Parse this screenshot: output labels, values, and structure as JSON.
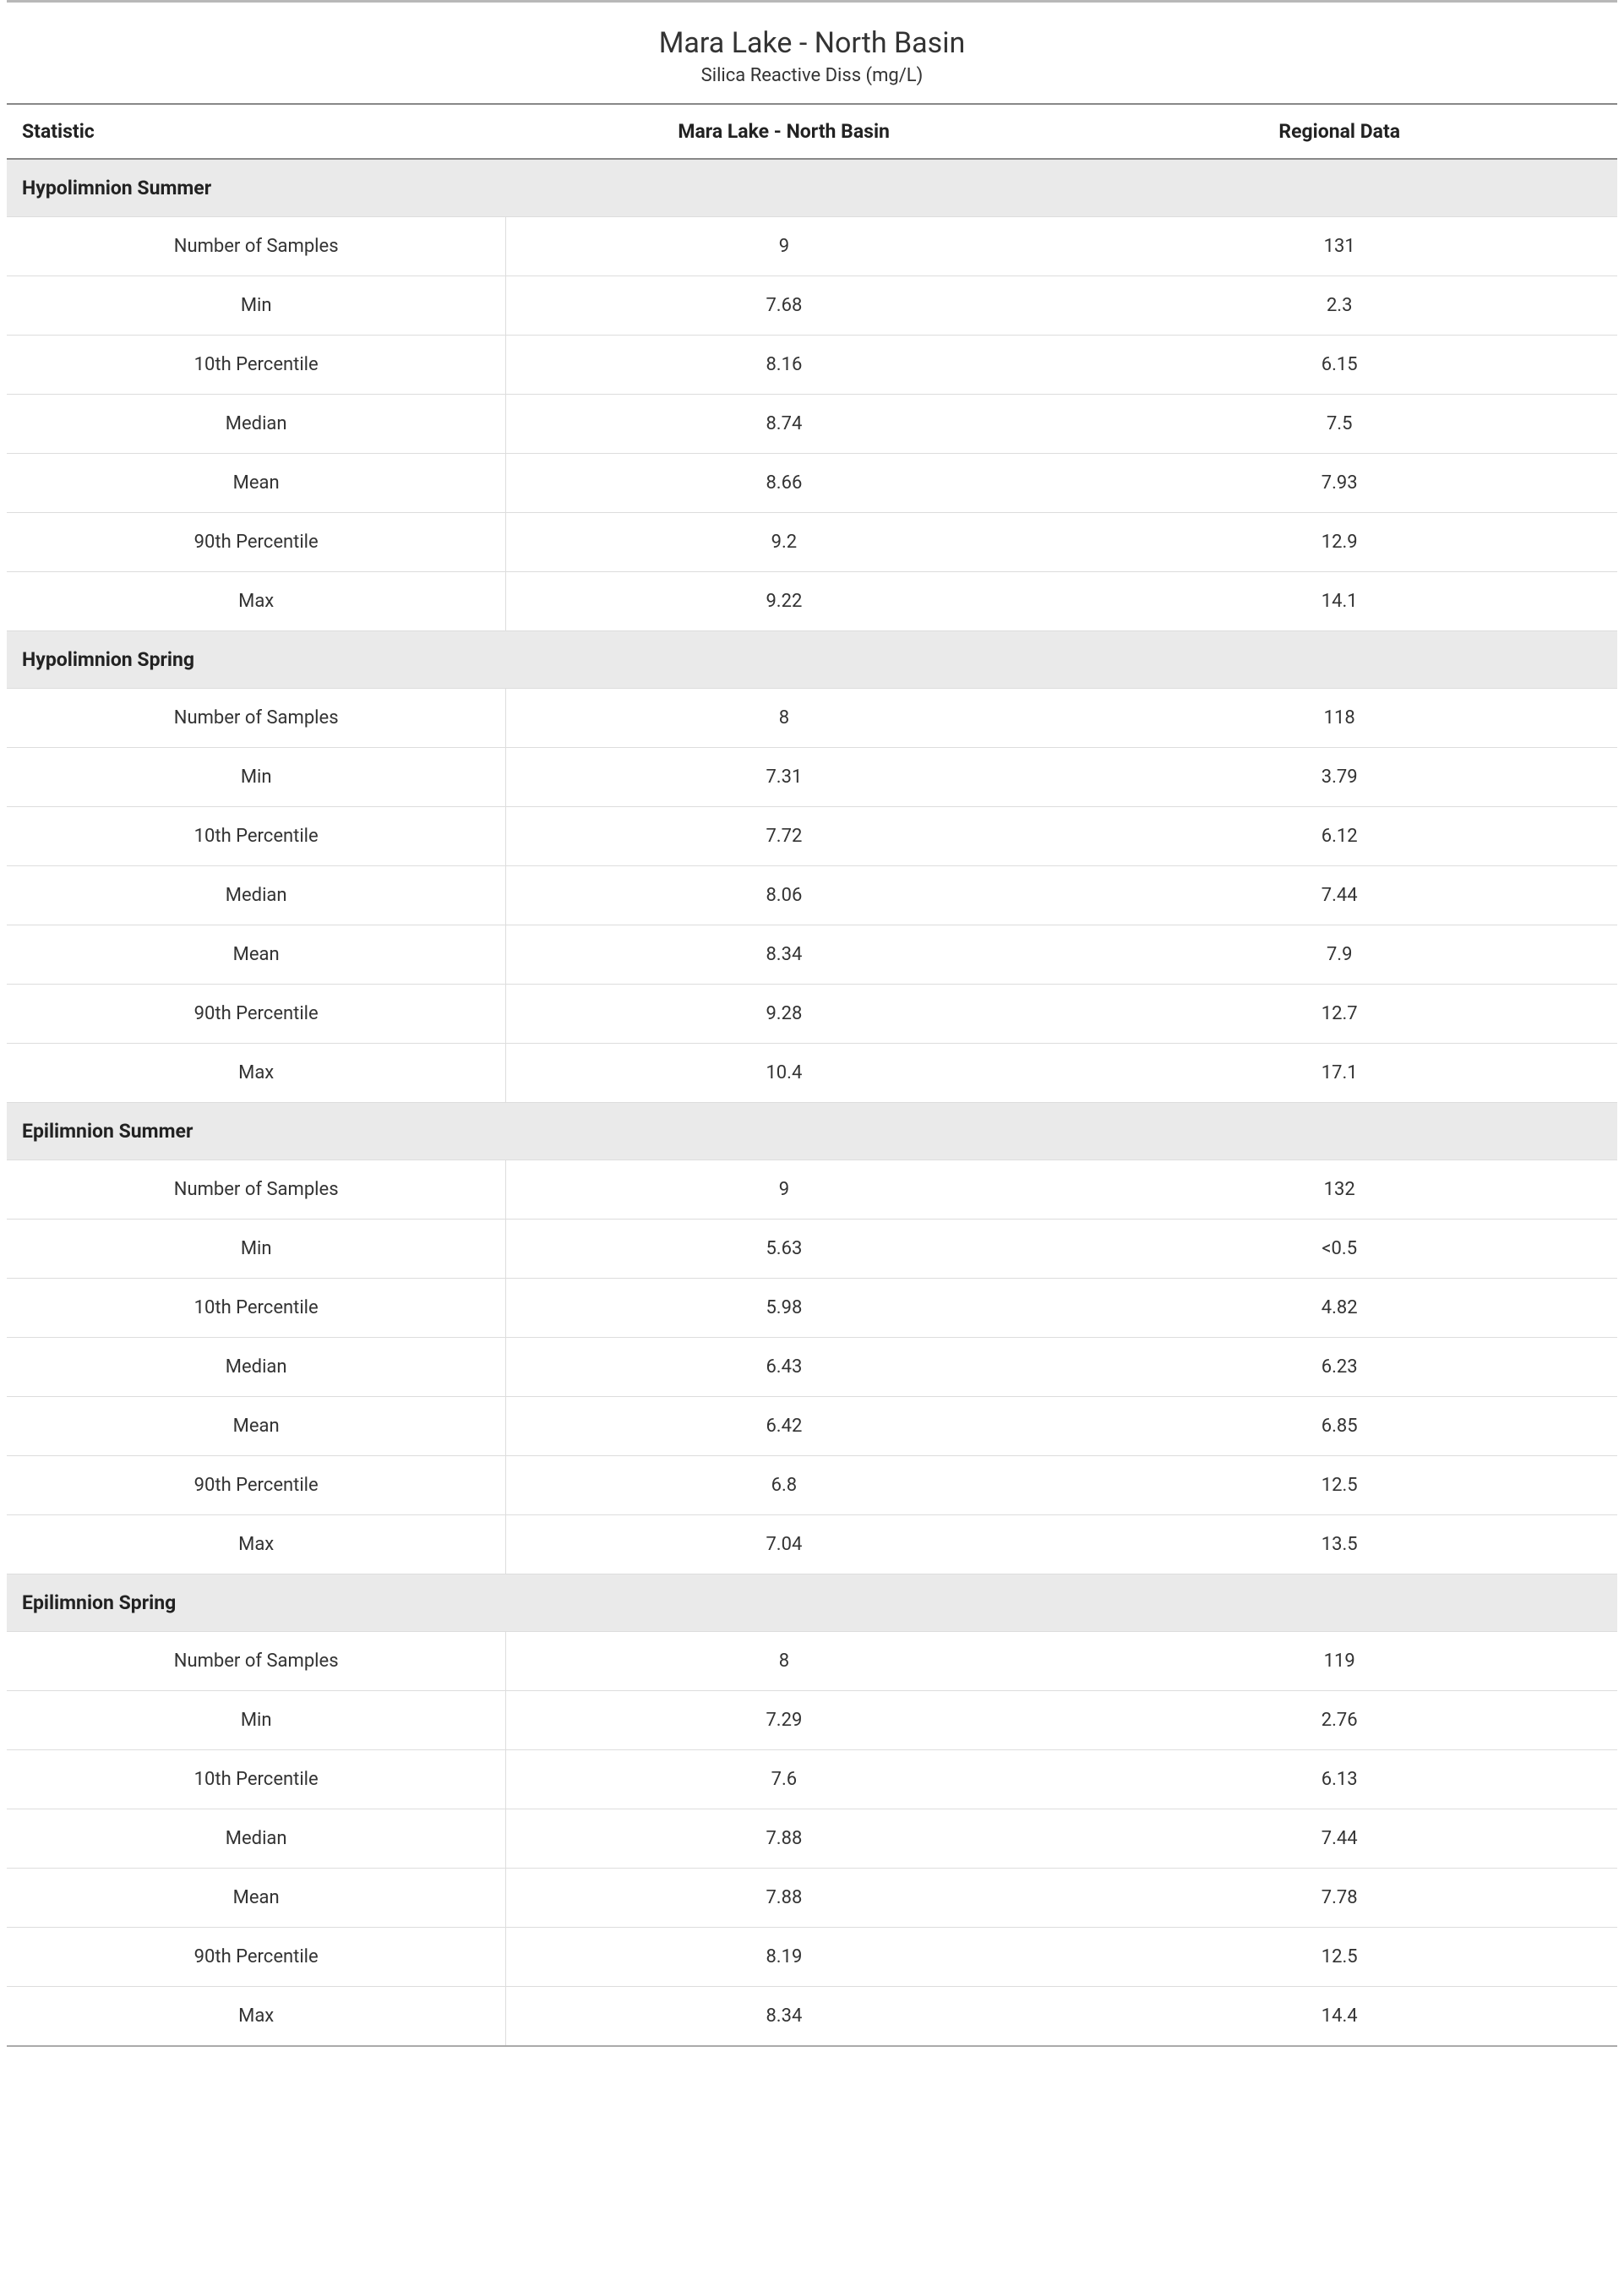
{
  "header": {
    "title": "Mara Lake - North Basin",
    "subtitle": "Silica Reactive Diss (mg/L)"
  },
  "table": {
    "columns": {
      "stat": "Statistic",
      "site": "Mara Lake - North Basin",
      "regional": "Regional Data"
    },
    "sections": [
      {
        "name": "Hypolimnion Summer",
        "rows": [
          {
            "label": "Number of Samples",
            "site": "9",
            "regional": "131"
          },
          {
            "label": "Min",
            "site": "7.68",
            "regional": "2.3"
          },
          {
            "label": "10th Percentile",
            "site": "8.16",
            "regional": "6.15"
          },
          {
            "label": "Median",
            "site": "8.74",
            "regional": "7.5"
          },
          {
            "label": "Mean",
            "site": "8.66",
            "regional": "7.93"
          },
          {
            "label": "90th Percentile",
            "site": "9.2",
            "regional": "12.9"
          },
          {
            "label": "Max",
            "site": "9.22",
            "regional": "14.1"
          }
        ]
      },
      {
        "name": "Hypolimnion Spring",
        "rows": [
          {
            "label": "Number of Samples",
            "site": "8",
            "regional": "118"
          },
          {
            "label": "Min",
            "site": "7.31",
            "regional": "3.79"
          },
          {
            "label": "10th Percentile",
            "site": "7.72",
            "regional": "6.12"
          },
          {
            "label": "Median",
            "site": "8.06",
            "regional": "7.44"
          },
          {
            "label": "Mean",
            "site": "8.34",
            "regional": "7.9"
          },
          {
            "label": "90th Percentile",
            "site": "9.28",
            "regional": "12.7"
          },
          {
            "label": "Max",
            "site": "10.4",
            "regional": "17.1"
          }
        ]
      },
      {
        "name": "Epilimnion Summer",
        "rows": [
          {
            "label": "Number of Samples",
            "site": "9",
            "regional": "132"
          },
          {
            "label": "Min",
            "site": "5.63",
            "regional": "<0.5"
          },
          {
            "label": "10th Percentile",
            "site": "5.98",
            "regional": "4.82"
          },
          {
            "label": "Median",
            "site": "6.43",
            "regional": "6.23"
          },
          {
            "label": "Mean",
            "site": "6.42",
            "regional": "6.85"
          },
          {
            "label": "90th Percentile",
            "site": "6.8",
            "regional": "12.5"
          },
          {
            "label": "Max",
            "site": "7.04",
            "regional": "13.5"
          }
        ]
      },
      {
        "name": "Epilimnion Spring",
        "rows": [
          {
            "label": "Number of Samples",
            "site": "8",
            "regional": "119"
          },
          {
            "label": "Min",
            "site": "7.29",
            "regional": "2.76"
          },
          {
            "label": "10th Percentile",
            "site": "7.6",
            "regional": "6.13"
          },
          {
            "label": "Median",
            "site": "7.88",
            "regional": "7.44"
          },
          {
            "label": "Mean",
            "site": "7.88",
            "regional": "7.78"
          },
          {
            "label": "90th Percentile",
            "site": "8.19",
            "regional": "12.5"
          },
          {
            "label": "Max",
            "site": "8.34",
            "regional": "14.4"
          }
        ]
      }
    ]
  },
  "style": {
    "background_color": "#ffffff",
    "text_color": "#333333",
    "section_bg": "#eaeaea",
    "border_light": "#dddddd",
    "border_header": "#888888",
    "top_rule": "#b8b8b8",
    "title_fontsize": 34,
    "body_fontsize": 22
  }
}
